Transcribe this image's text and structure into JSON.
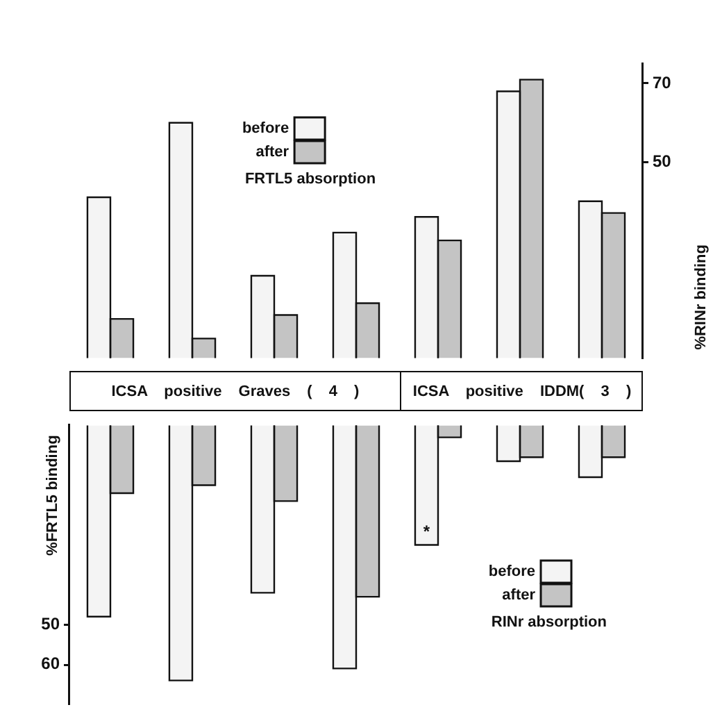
{
  "chart_data": [
    {
      "type": "bar",
      "ylabel": "%RINr binding",
      "legend_title": "FRTL5 absorption",
      "annotations": [
        "ICSA positive Graves ( 4 )",
        "ICSA positive IDDM( 3 )"
      ],
      "categories": [
        null,
        null,
        null,
        null,
        null,
        null,
        null
      ],
      "series": [
        {
          "name": "before",
          "color": "#f4f4f4",
          "values": [
            41,
            60,
            21,
            32,
            36,
            68,
            40
          ]
        },
        {
          "name": "after",
          "color": "#c4c4c4",
          "values": [
            10,
            5,
            11,
            14,
            30,
            71,
            37
          ]
        }
      ],
      "ylim": [
        0,
        75
      ],
      "yticks": [
        50,
        70
      ],
      "legend": "top",
      "tick_labels": "y"
    },
    {
      "type": "bar",
      "ylabel": "%FRTL5 binding",
      "legend_title": "RINr absorption",
      "categories": [
        null,
        null,
        null,
        null,
        null,
        null,
        null
      ],
      "series": [
        {
          "name": "before",
          "color": "#f4f4f4",
          "values": [
            48,
            64,
            42,
            61,
            30,
            9,
            13
          ],
          "value_labels": [
            null,
            null,
            null,
            null,
            "*",
            null,
            null
          ]
        },
        {
          "name": "after",
          "color": "#c4c4c4",
          "values": [
            17,
            15,
            19,
            43,
            3,
            8,
            8
          ]
        }
      ],
      "ylim": [
        70,
        0
      ],
      "yticks": [
        50,
        60
      ],
      "legend": "bottom right",
      "tick_labels": "y"
    }
  ]
}
